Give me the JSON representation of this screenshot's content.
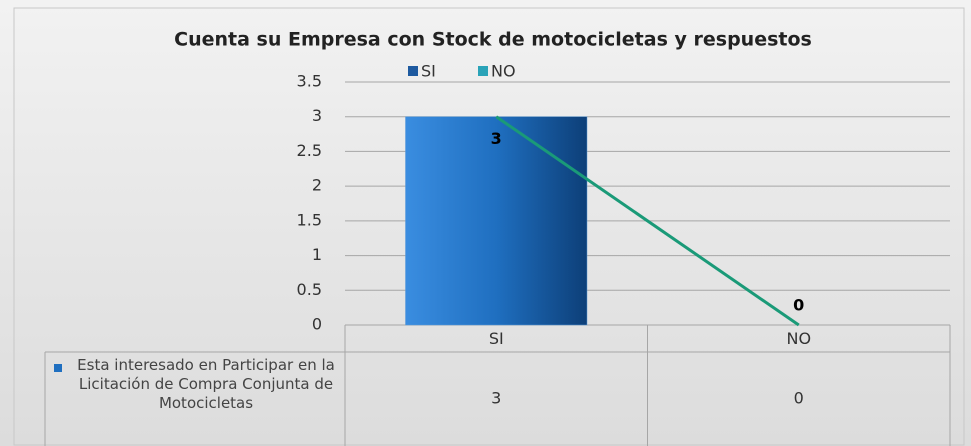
{
  "chart_data": {
    "type": "bar",
    "title": "Cuenta su Empresa con Stock de motocicletas y respuestos",
    "categories": [
      "SI",
      "NO"
    ],
    "colors": [
      "#1e5aa0",
      "#2aa3b8"
    ],
    "line_color": "#1a9a78",
    "series": [
      {
        "name": "Esta interesado en Participar en la Licitación de Compra Conjunta de Motocicletas",
        "color": "#1f6fc0",
        "values": [
          3,
          0
        ]
      }
    ],
    "ylim": [
      0,
      3.5
    ],
    "yticks": [
      0,
      0.5,
      1,
      1.5,
      2,
      2.5,
      3,
      3.5
    ],
    "grid": true
  }
}
